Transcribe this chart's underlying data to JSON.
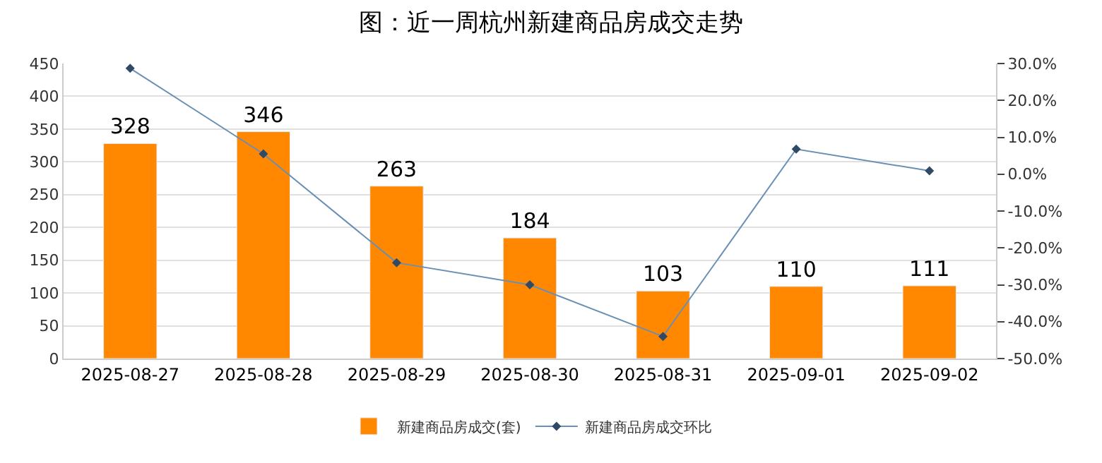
{
  "chart_data": {
    "type": "bar",
    "title": "图：近一周杭州新建商品房成交走势",
    "categories": [
      "2025-08-27",
      "2025-08-28",
      "2025-08-29",
      "2025-08-30",
      "2025-08-31",
      "2025-09-01",
      "2025-09-02"
    ],
    "series": [
      {
        "name": "新建商品房成交(套)",
        "color": "#ff8800",
        "values": [
          328,
          346,
          263,
          184,
          103,
          110,
          111
        ],
        "value_labels": [
          "328",
          "346",
          "263",
          "184",
          "103",
          "110",
          "111"
        ]
      },
      {
        "name": "新建商品房成交环比",
        "type": "line",
        "axis": "y2",
        "color": "#6a8fb5",
        "marker": "diamond",
        "values": [
          28.7,
          5.5,
          -24.0,
          -30.0,
          -44.0,
          6.8,
          0.9
        ]
      }
    ],
    "ylim": [
      0,
      450
    ],
    "yticks": [
      0,
      50,
      100,
      150,
      200,
      250,
      300,
      350,
      400,
      450
    ],
    "y2lim": [
      -50,
      30
    ],
    "y2ticks": [
      {
        "value": -50,
        "label": "-50.0%"
      },
      {
        "value": -40,
        "label": "-40.0%"
      },
      {
        "value": -30,
        "label": "-30.0%"
      },
      {
        "value": -20,
        "label": "-20.0%"
      },
      {
        "value": -10,
        "label": "-10.0%"
      },
      {
        "value": 0,
        "label": "0.0%"
      },
      {
        "value": 10,
        "label": "10.0%"
      },
      {
        "value": 20,
        "label": "20.0%"
      },
      {
        "value": 30,
        "label": "30.0%"
      }
    ],
    "grid": "y",
    "legend": "bottom"
  }
}
